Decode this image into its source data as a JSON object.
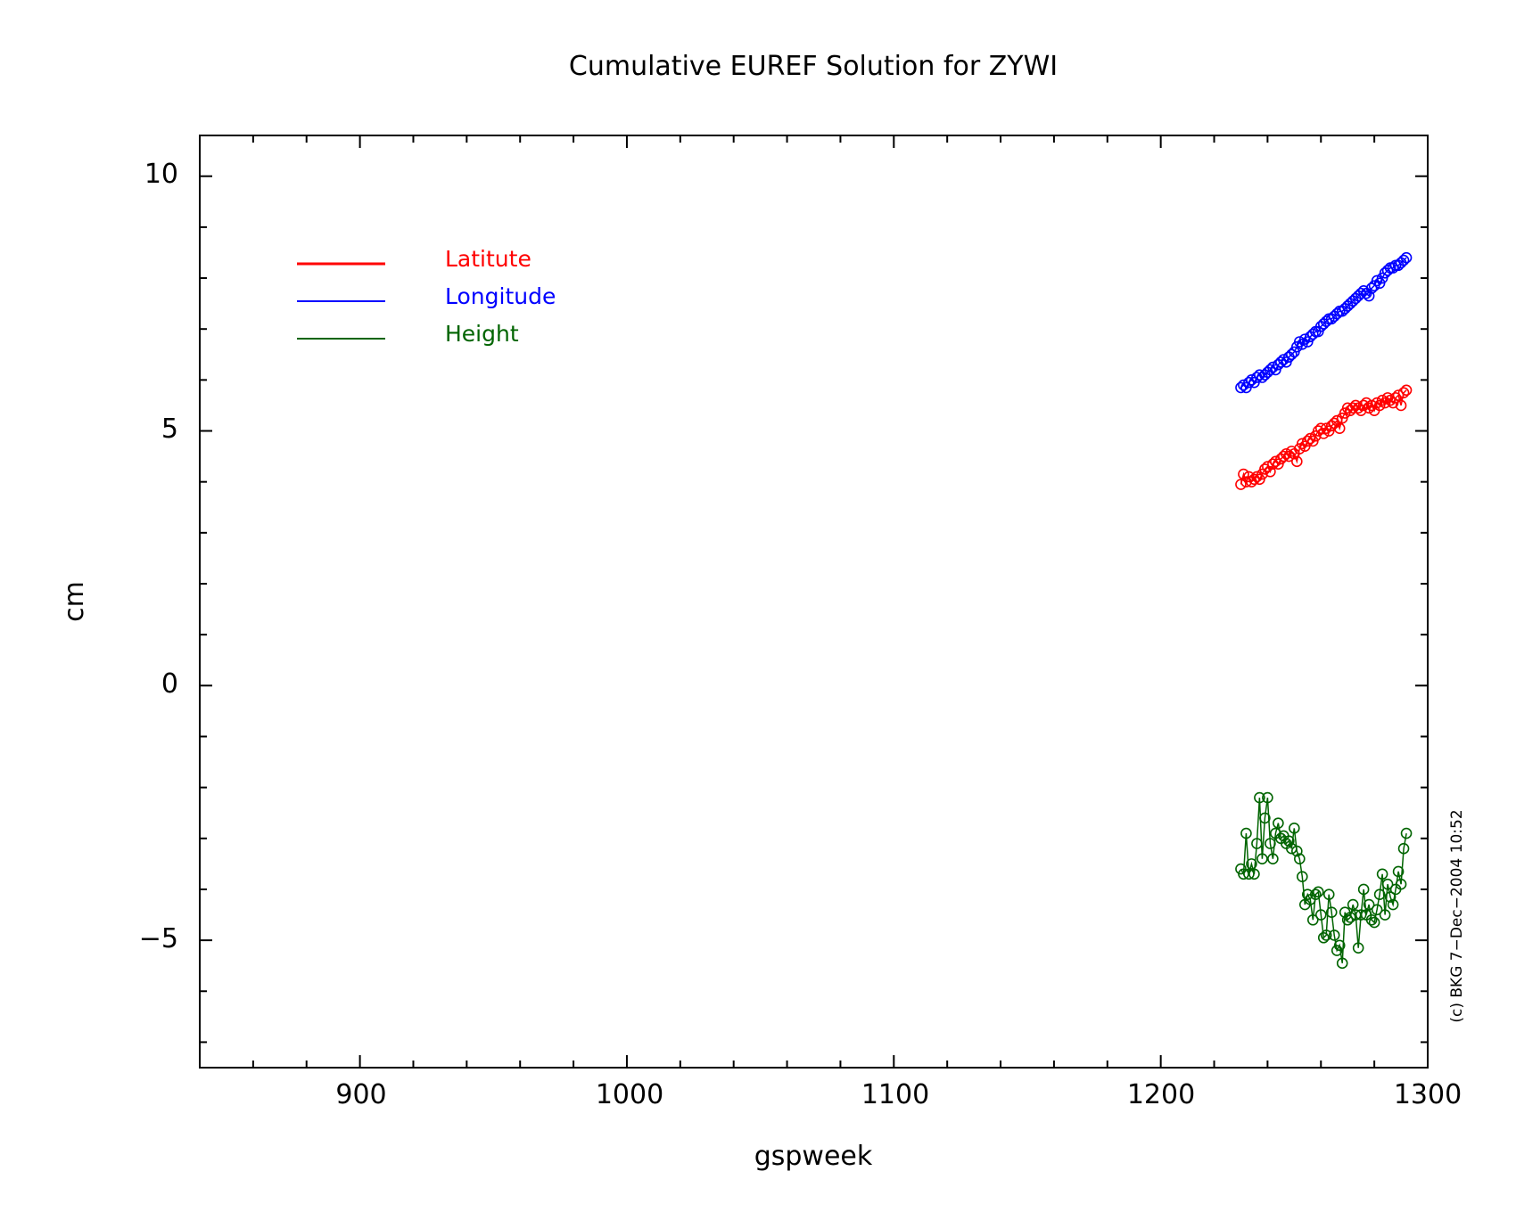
{
  "chart_data": {
    "type": "line",
    "title": "Cumulative EUREF Solution for ZYWI",
    "xlabel": "gspweek",
    "ylabel": "cm",
    "xlim": [
      840,
      1300
    ],
    "ylim": [
      -7.5,
      10.8
    ],
    "xticks": [
      "900",
      "1000",
      "1100",
      "1200",
      "1300"
    ],
    "yticks": [
      "10",
      "5",
      "0",
      "−5"
    ],
    "legend_position": "top-left",
    "credit": "(c) BKG 7−Dec−2004 10:52",
    "series": [
      {
        "name": "Latitute",
        "color": "#ff0000",
        "x": [
          1230,
          1231,
          1232,
          1233,
          1234,
          1235,
          1236,
          1237,
          1238,
          1239,
          1240,
          1241,
          1242,
          1243,
          1244,
          1245,
          1246,
          1247,
          1248,
          1249,
          1250,
          1251,
          1252,
          1253,
          1254,
          1255,
          1256,
          1257,
          1258,
          1259,
          1260,
          1261,
          1262,
          1263,
          1264,
          1265,
          1266,
          1267,
          1268,
          1269,
          1270,
          1271,
          1272,
          1273,
          1274,
          1275,
          1276,
          1277,
          1278,
          1279,
          1280,
          1281,
          1282,
          1283,
          1284,
          1285,
          1286,
          1287,
          1288,
          1289,
          1290,
          1291,
          1292
        ],
        "y": [
          3.95,
          4.15,
          4.0,
          4.1,
          4.0,
          4.05,
          4.1,
          4.05,
          4.15,
          4.25,
          4.3,
          4.2,
          4.35,
          4.4,
          4.35,
          4.45,
          4.5,
          4.55,
          4.5,
          4.6,
          4.55,
          4.4,
          4.65,
          4.75,
          4.7,
          4.8,
          4.85,
          4.8,
          4.9,
          5.0,
          5.05,
          4.95,
          5.05,
          5.0,
          5.1,
          5.15,
          5.2,
          5.05,
          5.25,
          5.35,
          5.45,
          5.4,
          5.45,
          5.5,
          5.45,
          5.4,
          5.5,
          5.55,
          5.45,
          5.5,
          5.4,
          5.55,
          5.5,
          5.6,
          5.55,
          5.65,
          5.6,
          5.55,
          5.65,
          5.7,
          5.5,
          5.75,
          5.8
        ]
      },
      {
        "name": "Longitude",
        "color": "#0000ff",
        "x": [
          1230,
          1231,
          1232,
          1233,
          1234,
          1235,
          1236,
          1237,
          1238,
          1239,
          1240,
          1241,
          1242,
          1243,
          1244,
          1245,
          1246,
          1247,
          1248,
          1249,
          1250,
          1251,
          1252,
          1253,
          1254,
          1255,
          1256,
          1257,
          1258,
          1259,
          1260,
          1261,
          1262,
          1263,
          1264,
          1265,
          1266,
          1267,
          1268,
          1269,
          1270,
          1271,
          1272,
          1273,
          1274,
          1275,
          1276,
          1277,
          1278,
          1279,
          1280,
          1281,
          1282,
          1283,
          1284,
          1285,
          1286,
          1287,
          1288,
          1289,
          1290,
          1291,
          1292
        ],
        "y": [
          5.85,
          5.9,
          5.85,
          5.95,
          6.0,
          5.95,
          6.05,
          6.1,
          6.05,
          6.1,
          6.15,
          6.2,
          6.25,
          6.2,
          6.3,
          6.35,
          6.4,
          6.35,
          6.45,
          6.5,
          6.55,
          6.65,
          6.75,
          6.7,
          6.8,
          6.75,
          6.85,
          6.9,
          6.95,
          6.95,
          7.05,
          7.1,
          7.15,
          7.2,
          7.2,
          7.25,
          7.3,
          7.35,
          7.35,
          7.4,
          7.45,
          7.5,
          7.55,
          7.6,
          7.65,
          7.7,
          7.75,
          7.7,
          7.65,
          7.8,
          7.85,
          7.95,
          7.9,
          8.0,
          8.1,
          8.15,
          8.2,
          8.2,
          8.25,
          8.25,
          8.3,
          8.35,
          8.4
        ]
      },
      {
        "name": "Height",
        "color": "#006400",
        "x": [
          1230,
          1231,
          1232,
          1233,
          1234,
          1235,
          1236,
          1237,
          1238,
          1239,
          1240,
          1241,
          1242,
          1243,
          1244,
          1245,
          1246,
          1247,
          1248,
          1249,
          1250,
          1251,
          1252,
          1253,
          1254,
          1255,
          1256,
          1257,
          1258,
          1259,
          1260,
          1261,
          1262,
          1263,
          1264,
          1265,
          1266,
          1267,
          1268,
          1269,
          1270,
          1271,
          1272,
          1273,
          1274,
          1275,
          1276,
          1277,
          1278,
          1279,
          1280,
          1281,
          1282,
          1283,
          1284,
          1285,
          1286,
          1287,
          1288,
          1289,
          1290,
          1291,
          1292
        ],
        "y": [
          -3.6,
          -3.7,
          -2.9,
          -3.7,
          -3.5,
          -3.7,
          -3.1,
          -2.2,
          -3.4,
          -2.6,
          -2.2,
          -3.1,
          -3.4,
          -2.9,
          -2.7,
          -3.0,
          -2.95,
          -3.1,
          -3.05,
          -3.2,
          -2.8,
          -3.25,
          -3.4,
          -3.75,
          -4.3,
          -4.1,
          -4.2,
          -4.6,
          -4.1,
          -4.05,
          -4.5,
          -4.95,
          -4.9,
          -4.1,
          -4.45,
          -4.9,
          -5.2,
          -5.1,
          -5.45,
          -4.45,
          -4.6,
          -4.55,
          -4.3,
          -4.5,
          -5.15,
          -4.5,
          -4.0,
          -4.5,
          -4.3,
          -4.6,
          -4.65,
          -4.4,
          -4.1,
          -3.7,
          -4.5,
          -3.9,
          -4.15,
          -4.3,
          -4.0,
          -3.65,
          -3.9,
          -3.2,
          -2.9
        ]
      }
    ]
  }
}
